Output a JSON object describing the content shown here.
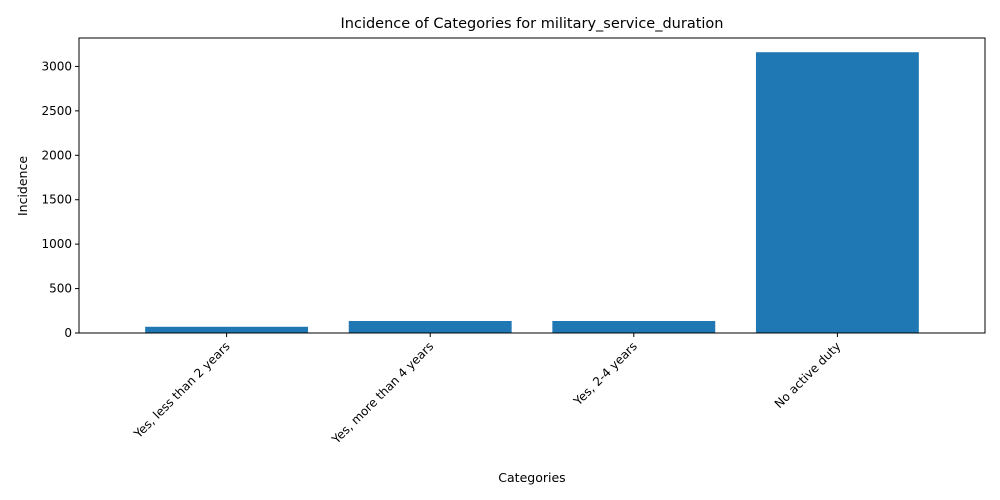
{
  "chart_data": {
    "type": "bar",
    "title": "Incidence of Categories for military_service_duration",
    "xlabel": "Categories",
    "ylabel": "Incidence",
    "categories": [
      "Yes, less than 2 years",
      "Yes, more than 4 years",
      "Yes, 2-4 years",
      "No active duty"
    ],
    "values": [
      70,
      135,
      135,
      3160
    ],
    "ylim": [
      0,
      3320
    ],
    "yticks": [
      0,
      500,
      1000,
      1500,
      2000,
      2500,
      3000
    ],
    "grid": false,
    "bar_color": "#1f77b4"
  }
}
